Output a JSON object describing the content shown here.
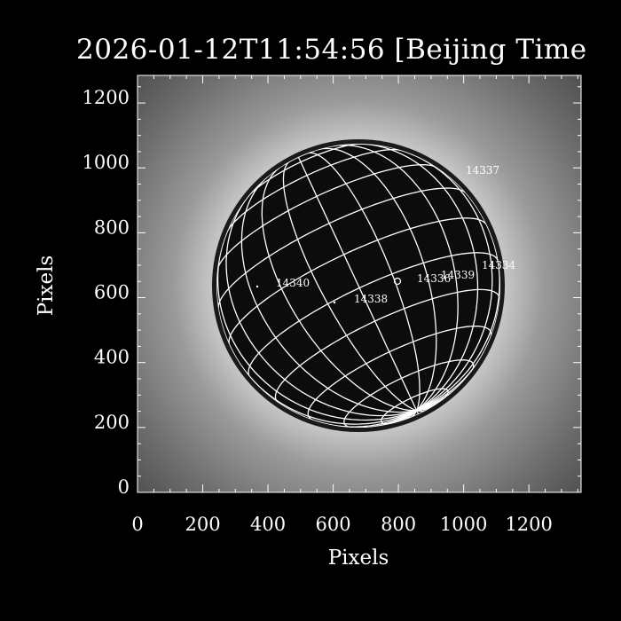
{
  "title": "2026-01-12T11:54:56 [Beijing Time",
  "chart_data": {
    "type": "image",
    "xlabel": "Pixels",
    "ylabel": "Pixels",
    "xlim": [
      0,
      1360
    ],
    "ylim": [
      0,
      1285
    ],
    "xticks": [
      "0",
      "200",
      "400",
      "600",
      "800",
      "1000",
      "1200"
    ],
    "yticks": [
      "0",
      "200",
      "400",
      "600",
      "800",
      "1000",
      "1200"
    ],
    "grid_spacing_deg": 15,
    "active_regions": [
      "14337",
      "14334",
      "14339",
      "14336",
      "14340",
      "14338"
    ],
    "colors": {
      "background": "#000000",
      "grid": "#ffffff",
      "text": "#ffffff"
    }
  }
}
